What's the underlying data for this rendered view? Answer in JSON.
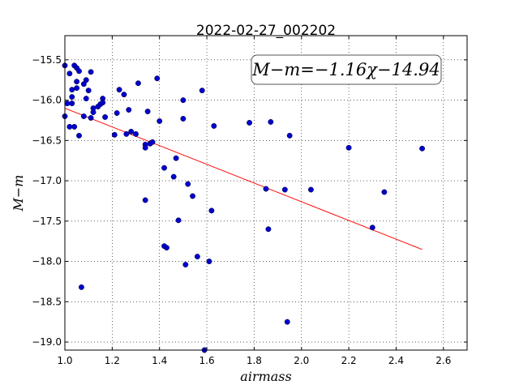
{
  "chart_data": {
    "type": "scatter",
    "title": "2022-02-27_002202",
    "xlabel": "airmass",
    "ylabel": "M−m",
    "xlim": [
      1.0,
      2.7
    ],
    "ylim": [
      -19.1,
      -15.2
    ],
    "y_inverted": true,
    "x_ticks": [
      1.0,
      1.2,
      1.4,
      1.6,
      1.8,
      2.0,
      2.2,
      2.4,
      2.6
    ],
    "x_tick_labels": [
      "1.0",
      "1.2",
      "1.4",
      "1.6",
      "1.8",
      "2.0",
      "2.2",
      "2.4",
      "2.6"
    ],
    "y_ticks": [
      -15.5,
      -16.0,
      -16.5,
      -17.0,
      -17.5,
      -18.0,
      -18.5,
      -19.0
    ],
    "y_tick_labels": [
      "−15.5",
      "−16.0",
      "−16.5",
      "−17.0",
      "−17.5",
      "−18.0",
      "−18.5",
      "−19.0"
    ],
    "grid": true,
    "annotation": "M−m=−1.16χ−14.94",
    "fit": {
      "slope": -1.16,
      "intercept": -14.94,
      "x_range": [
        1.0,
        2.51
      ],
      "color": "#ff0000"
    },
    "point_color": "#0000cc",
    "points": [
      [
        1.0,
        -15.57
      ],
      [
        1.0,
        -16.2
      ],
      [
        1.01,
        -16.04
      ],
      [
        1.02,
        -15.67
      ],
      [
        1.02,
        -16.33
      ],
      [
        1.03,
        -16.04
      ],
      [
        1.03,
        -15.96
      ],
      [
        1.03,
        -15.87
      ],
      [
        1.04,
        -16.33
      ],
      [
        1.04,
        -15.57
      ],
      [
        1.05,
        -15.6
      ],
      [
        1.05,
        -15.77
      ],
      [
        1.05,
        -15.85
      ],
      [
        1.06,
        -15.64
      ],
      [
        1.06,
        -16.44
      ],
      [
        1.07,
        -18.32
      ],
      [
        1.08,
        -15.8
      ],
      [
        1.08,
        -16.2
      ],
      [
        1.09,
        -15.75
      ],
      [
        1.09,
        -15.98
      ],
      [
        1.1,
        -15.88
      ],
      [
        1.11,
        -16.22
      ],
      [
        1.11,
        -15.65
      ],
      [
        1.12,
        -16.15
      ],
      [
        1.12,
        -16.1
      ],
      [
        1.14,
        -16.08
      ],
      [
        1.15,
        -16.05
      ],
      [
        1.16,
        -15.98
      ],
      [
        1.16,
        -16.03
      ],
      [
        1.17,
        -16.21
      ],
      [
        1.21,
        -16.43
      ],
      [
        1.22,
        -16.16
      ],
      [
        1.23,
        -15.87
      ],
      [
        1.25,
        -15.93
      ],
      [
        1.26,
        -16.42
      ],
      [
        1.27,
        -16.12
      ],
      [
        1.28,
        -16.39
      ],
      [
        1.3,
        -16.42
      ],
      [
        1.31,
        -15.79
      ],
      [
        1.34,
        -17.24
      ],
      [
        1.34,
        -16.55
      ],
      [
        1.34,
        -16.59
      ],
      [
        1.35,
        -16.14
      ],
      [
        1.36,
        -16.54
      ],
      [
        1.37,
        -16.52
      ],
      [
        1.39,
        -15.73
      ],
      [
        1.4,
        -16.26
      ],
      [
        1.42,
        -17.81
      ],
      [
        1.42,
        -16.84
      ],
      [
        1.43,
        -17.83
      ],
      [
        1.46,
        -16.95
      ],
      [
        1.47,
        -16.72
      ],
      [
        1.48,
        -17.49
      ],
      [
        1.5,
        -16.23
      ],
      [
        1.5,
        -16.0
      ],
      [
        1.51,
        -18.04
      ],
      [
        1.52,
        -17.04
      ],
      [
        1.54,
        -17.19
      ],
      [
        1.56,
        -17.94
      ],
      [
        1.58,
        -15.88
      ],
      [
        1.59,
        -19.1
      ],
      [
        1.61,
        -18.0
      ],
      [
        1.62,
        -17.37
      ],
      [
        1.63,
        -16.32
      ],
      [
        1.78,
        -16.28
      ],
      [
        1.85,
        -17.1
      ],
      [
        1.86,
        -17.6
      ],
      [
        1.87,
        -16.27
      ],
      [
        1.93,
        -17.11
      ],
      [
        1.94,
        -18.75
      ],
      [
        1.95,
        -16.44
      ],
      [
        2.04,
        -17.11
      ],
      [
        2.2,
        -16.59
      ],
      [
        2.3,
        -17.58
      ],
      [
        2.35,
        -17.14
      ],
      [
        2.51,
        -16.6
      ]
    ]
  }
}
